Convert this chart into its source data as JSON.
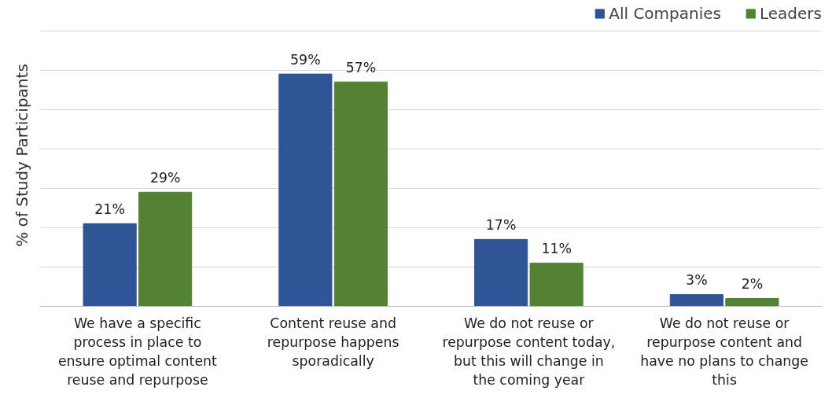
{
  "chart_data": {
    "type": "bar",
    "ylabel": "% of Study Participants",
    "categories": [
      "We have a specific process in place to ensure optimal content reuse and repurpose",
      "Content reuse and repurpose happens sporadically",
      "We do not reuse or repurpose content today, but this will change in the coming year",
      "We do not reuse or repurpose content and have no plans to change this"
    ],
    "series": [
      {
        "name": "All Companies",
        "color": "#2f5597",
        "values": [
          21,
          59,
          17,
          3
        ],
        "value_labels": [
          "21%",
          "59%",
          "17%",
          "3%"
        ]
      },
      {
        "name": "Leaders",
        "color": "#548235",
        "values": [
          29,
          57,
          11,
          2
        ],
        "value_labels": [
          "29%",
          "57%",
          "11%",
          "2%"
        ]
      }
    ],
    "grid": "y",
    "legend": "top right",
    "tick_labels": "x"
  }
}
